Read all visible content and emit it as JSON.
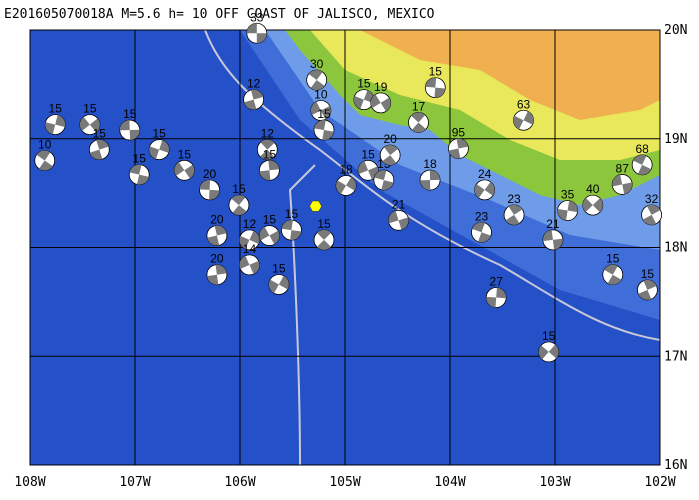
{
  "map": {
    "title": "E201605070018A M=5.6 h= 10 OFF COAST OF JALISCO, MEXICO",
    "xlim": [
      -108,
      -102
    ],
    "ylim": [
      16,
      20
    ],
    "xticks": [
      {
        "value": -108,
        "label": "108W"
      },
      {
        "value": -107,
        "label": "107W"
      },
      {
        "value": -106,
        "label": "106W"
      },
      {
        "value": -105,
        "label": "105W"
      },
      {
        "value": -104,
        "label": "104W"
      },
      {
        "value": -103,
        "label": "103W"
      },
      {
        "value": -102,
        "label": "102W"
      }
    ],
    "yticks": [
      {
        "value": 16,
        "label": "16N"
      },
      {
        "value": 17,
        "label": "17N"
      },
      {
        "value": 18,
        "label": "18N"
      },
      {
        "value": 19,
        "label": "19N"
      },
      {
        "value": 20,
        "label": "20N"
      }
    ],
    "epicenter": {
      "lon": -105.28,
      "lat": 18.38
    },
    "events": [
      {
        "depth": 33,
        "lon": -105.84,
        "lat": 19.97
      },
      {
        "depth": 30,
        "lon": -105.27,
        "lat": 19.54
      },
      {
        "depth": 12,
        "lon": -105.87,
        "lat": 19.36
      },
      {
        "depth": 15,
        "lon": -104.82,
        "lat": 19.36
      },
      {
        "depth": 19,
        "lon": -104.66,
        "lat": 19.33
      },
      {
        "depth": 15,
        "lon": -104.14,
        "lat": 19.47
      },
      {
        "depth": 17,
        "lon": -104.3,
        "lat": 19.15
      },
      {
        "depth": 95,
        "lon": -103.92,
        "lat": 18.91
      },
      {
        "depth": 63,
        "lon": -103.3,
        "lat": 19.17
      },
      {
        "depth": 10,
        "lon": -105.23,
        "lat": 19.26
      },
      {
        "depth": 15,
        "lon": -105.2,
        "lat": 19.08
      },
      {
        "depth": 12,
        "lon": -105.74,
        "lat": 18.9
      },
      {
        "depth": 15,
        "lon": -105.72,
        "lat": 18.71
      },
      {
        "depth": 18,
        "lon": -104.99,
        "lat": 18.57
      },
      {
        "depth": 15,
        "lon": -104.78,
        "lat": 18.71
      },
      {
        "depth": 15,
        "lon": -104.63,
        "lat": 18.62
      },
      {
        "depth": 20,
        "lon": -104.57,
        "lat": 18.85
      },
      {
        "depth": 18,
        "lon": -104.19,
        "lat": 18.62
      },
      {
        "depth": 24,
        "lon": -103.67,
        "lat": 18.53
      },
      {
        "depth": 21,
        "lon": -104.49,
        "lat": 18.25
      },
      {
        "depth": 23,
        "lon": -103.7,
        "lat": 18.14
      },
      {
        "depth": 23,
        "lon": -103.39,
        "lat": 18.3
      },
      {
        "depth": 27,
        "lon": -103.56,
        "lat": 17.54
      },
      {
        "depth": 15,
        "lon": -103.06,
        "lat": 17.04
      },
      {
        "depth": 87,
        "lon": -102.36,
        "lat": 18.58
      },
      {
        "depth": 68,
        "lon": -102.17,
        "lat": 18.76
      },
      {
        "depth": 32,
        "lon": -102.08,
        "lat": 18.3
      },
      {
        "depth": 35,
        "lon": -102.88,
        "lat": 18.34
      },
      {
        "depth": 40,
        "lon": -102.64,
        "lat": 18.39
      },
      {
        "depth": 21,
        "lon": -103.02,
        "lat": 18.07
      },
      {
        "depth": 15,
        "lon": -102.45,
        "lat": 17.75
      },
      {
        "depth": 15,
        "lon": -102.12,
        "lat": 17.61
      },
      {
        "depth": 15,
        "lon": -107.76,
        "lat": 19.13
      },
      {
        "depth": 15,
        "lon": -107.43,
        "lat": 19.13
      },
      {
        "depth": 15,
        "lon": -107.05,
        "lat": 19.08
      },
      {
        "depth": 10,
        "lon": -107.86,
        "lat": 18.8
      },
      {
        "depth": 15,
        "lon": -107.34,
        "lat": 18.9
      },
      {
        "depth": 15,
        "lon": -106.77,
        "lat": 18.9
      },
      {
        "depth": 15,
        "lon": -106.53,
        "lat": 18.71
      },
      {
        "depth": 20,
        "lon": -106.29,
        "lat": 18.53
      },
      {
        "depth": 15,
        "lon": -106.01,
        "lat": 18.39
      },
      {
        "depth": 20,
        "lon": -106.22,
        "lat": 18.11
      },
      {
        "depth": 12,
        "lon": -105.91,
        "lat": 18.07
      },
      {
        "depth": 15,
        "lon": -105.72,
        "lat": 18.11
      },
      {
        "depth": 15,
        "lon": -105.51,
        "lat": 18.16
      },
      {
        "depth": 15,
        "lon": -105.2,
        "lat": 18.07
      },
      {
        "depth": 20,
        "lon": -106.22,
        "lat": 17.75
      },
      {
        "depth": 15,
        "lon": -105.63,
        "lat": 17.66
      },
      {
        "depth": 14,
        "lon": -105.91,
        "lat": 17.84
      },
      {
        "depth": 15,
        "lon": -106.96,
        "lat": 18.67
      }
    ]
  }
}
